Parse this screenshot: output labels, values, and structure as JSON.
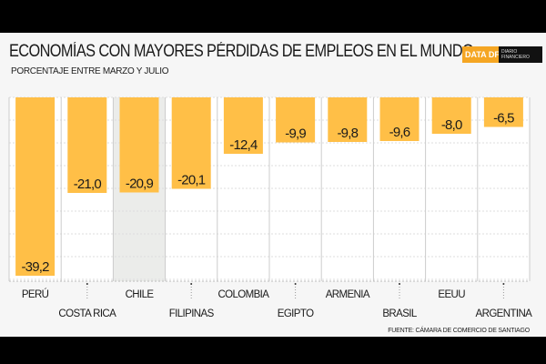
{
  "chart_data": {
    "type": "bar",
    "title": "ECONOMÍAS CON MAYORES PÉRDIDAS DE EMPLEOS EN EL MUNDO",
    "subtitle": "PORCENTAJE ENTRE MARZO Y JULIO",
    "categories": [
      "PERÚ",
      "COSTA RICA",
      "CHILE",
      "FILIPINAS",
      "COLOMBIA",
      "EGIPTO",
      "ARMENIA",
      "BRASIL",
      "EEUU",
      "ARGENTINA"
    ],
    "values": [
      -39.2,
      -21.0,
      -20.9,
      -20.1,
      -12.4,
      -9.9,
      -9.8,
      -9.6,
      -8.0,
      -6.5
    ],
    "value_labels": [
      "-39,2",
      "-21,0",
      "-20,9",
      "-20,1",
      "-12,4",
      "-9,9",
      "-9,8",
      "-9,6",
      "-8,0",
      "-6,5"
    ],
    "highlight": "CHILE",
    "ylim": [
      -40,
      0
    ],
    "grid": true,
    "source": "FUENTE: CÁMARA DE COMERCIO DE SANTIAGO",
    "bar_color": "#ffbf47",
    "highlight_color": "#ebecea"
  },
  "logo": {
    "brand": "DATA DF",
    "sub": "DIARIO FINANCIERO"
  }
}
